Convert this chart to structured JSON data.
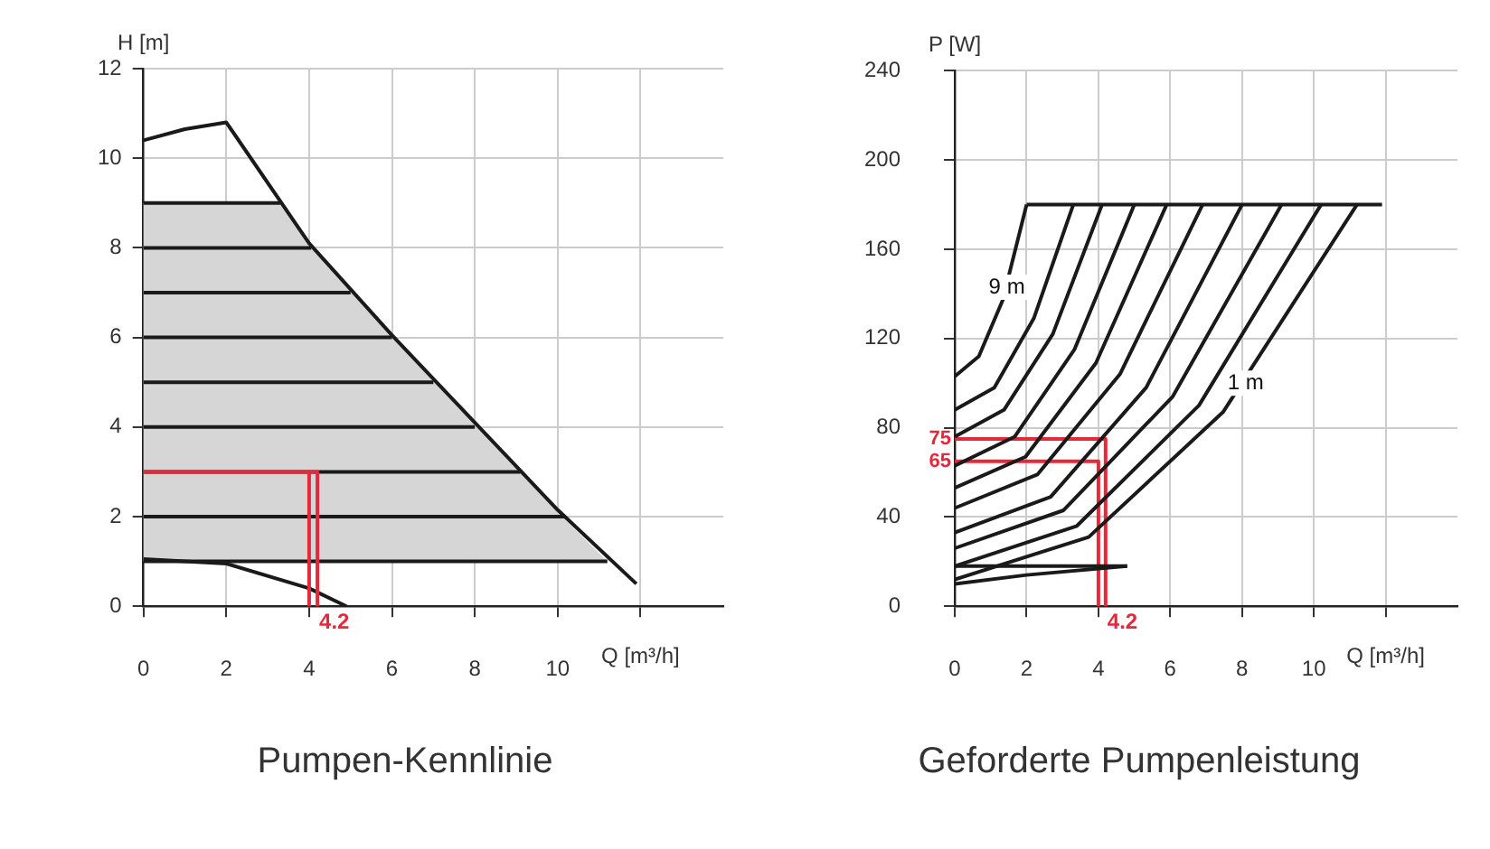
{
  "chart_data": [
    {
      "type": "line",
      "title": "Pumpen-Kennlinie",
      "xlabel": "Q [m³/h]",
      "ylabel": "H [m]",
      "xlim": [
        0,
        14
      ],
      "xticks": [
        0,
        2,
        4,
        6,
        8,
        10,
        {
          "value": 12,
          "label": null
        }
      ],
      "ylim": [
        0,
        12
      ],
      "yticks": [
        0,
        2,
        4,
        6,
        8,
        10,
        12
      ],
      "grid": true,
      "legend": false,
      "marker": "none",
      "line_style": "solid",
      "series": [
        {
          "color": "#e5283a",
          "x": [
            0,
            4.2,
            4.2
          ],
          "values": [
            3,
            3,
            0
          ]
        },
        {
          "color": "#e5283a",
          "x": [
            4,
            4
          ],
          "values": [
            3,
            0
          ]
        },
        {
          "color": "#1a1a1a",
          "x": [
            0,
            3.3
          ],
          "values": [
            9,
            9
          ]
        },
        {
          "color": "#1a1a1a",
          "x": [
            0,
            4.05
          ],
          "values": [
            8,
            8
          ]
        },
        {
          "color": "#1a1a1a",
          "x": [
            0,
            5
          ],
          "values": [
            7,
            7
          ]
        },
        {
          "color": "#1a1a1a",
          "x": [
            0,
            6
          ],
          "values": [
            6,
            6
          ]
        },
        {
          "color": "#1a1a1a",
          "x": [
            0,
            7
          ],
          "values": [
            5,
            5
          ]
        },
        {
          "color": "#1a1a1a",
          "x": [
            0,
            8
          ],
          "values": [
            4,
            4
          ]
        },
        {
          "color": "#1a1a1a",
          "x": [
            0,
            9.1
          ],
          "values": [
            3,
            3
          ]
        },
        {
          "color": "#1a1a1a",
          "x": [
            0,
            10.2
          ],
          "values": [
            2,
            2
          ]
        },
        {
          "color": "#1a1a1a",
          "x": [
            0,
            3.3,
            4,
            6,
            8,
            10,
            11.2
          ],
          "values": [
            1,
            1,
            1,
            1,
            1,
            1,
            1
          ],
          "lower": [
            1,
            1,
            1,
            1,
            1,
            1,
            1
          ],
          "upper": [
            9,
            9,
            8.1,
            6.05,
            4.1,
            2.1,
            1
          ]
        },
        {
          "color": "#1a1a1a",
          "x": [
            0,
            1,
            2,
            4,
            6,
            8,
            10,
            11.9
          ],
          "values": [
            10.4,
            10.65,
            10.8,
            8.1,
            6.05,
            4.1,
            2.15,
            0.5
          ]
        },
        {
          "color": "#1a1a1a",
          "x": [
            0,
            2,
            4,
            4.9
          ],
          "values": [
            1.05,
            0.95,
            0.4,
            0
          ]
        }
      ],
      "annotations": [
        {
          "text": "4.2",
          "x": 4.2,
          "y": 0
        }
      ]
    },
    {
      "type": "line",
      "title": "Geforderte Pumpenleistung",
      "xlabel": "Q [m³/h]",
      "ylabel": "P [W]",
      "xlim": [
        0,
        14
      ],
      "xticks": [
        0,
        2,
        4,
        6,
        8,
        10,
        {
          "value": 12,
          "label": null
        }
      ],
      "ylim": [
        0,
        240
      ],
      "yticks": [
        0,
        40,
        80,
        120,
        160,
        200,
        240
      ],
      "grid": true,
      "legend": false,
      "marker": "none",
      "line_style": "solid",
      "series": [
        {
          "color": "#1a1a1a",
          "x": [
            0,
            0.67,
            1.33,
            2
          ],
          "values": [
            103,
            112,
            137,
            180
          ]
        },
        {
          "color": "#1a1a1a",
          "x": [
            0,
            1.1,
            2.2,
            3.3
          ],
          "values": [
            88,
            98,
            129,
            180
          ]
        },
        {
          "color": "#1a1a1a",
          "x": [
            0,
            1.37,
            2.73,
            4.1
          ],
          "values": [
            76,
            88,
            122,
            180
          ]
        },
        {
          "color": "#1a1a1a",
          "x": [
            0,
            1.67,
            3.33,
            5
          ],
          "values": [
            63,
            76,
            115,
            180
          ]
        },
        {
          "color": "#1a1a1a",
          "x": [
            0,
            1.97,
            3.93,
            5.9
          ],
          "values": [
            53,
            67,
            109,
            180
          ]
        },
        {
          "color": "#1a1a1a",
          "x": [
            0,
            2.3,
            4.6,
            6.9
          ],
          "values": [
            44,
            59,
            104,
            180
          ]
        },
        {
          "color": "#1a1a1a",
          "x": [
            0,
            2.67,
            5.33,
            8
          ],
          "values": [
            33,
            49,
            98,
            180
          ]
        },
        {
          "color": "#1a1a1a",
          "x": [
            0,
            3.03,
            6.07,
            9.1
          ],
          "values": [
            26,
            43,
            94,
            180
          ]
        },
        {
          "color": "#1a1a1a",
          "x": [
            0,
            3.4,
            6.8,
            10.2
          ],
          "values": [
            18,
            36,
            90,
            180
          ]
        },
        {
          "color": "#1a1a1a",
          "x": [
            0,
            3.73,
            7.47,
            11.2
          ],
          "values": [
            12,
            31,
            87,
            180
          ]
        },
        {
          "color": "#1a1a1a",
          "x": [
            2,
            11.9
          ],
          "values": [
            180,
            180
          ]
        },
        {
          "color": "#1a1a1a",
          "x": [
            0,
            4.8
          ],
          "values": [
            18,
            18
          ]
        },
        {
          "color": "#1a1a1a",
          "x": [
            0,
            2,
            4.8
          ],
          "values": [
            10,
            14,
            18
          ]
        },
        {
          "color": "#e5283a",
          "x": [
            0,
            4.2,
            4.2
          ],
          "values": [
            75,
            75,
            0
          ]
        },
        {
          "color": "#e5283a",
          "x": [
            0,
            4,
            4
          ],
          "values": [
            65,
            65,
            0
          ]
        }
      ],
      "annotations": [
        {
          "text": "4.2",
          "x": 4.2,
          "y": 0
        },
        {
          "text": "75",
          "x": 0,
          "y": 75
        },
        {
          "text": "65",
          "x": 0,
          "y": 65
        },
        {
          "text": "9 m",
          "x": 1.45,
          "y": 143
        },
        {
          "text": "1 m",
          "x": 8.1,
          "y": 100
        }
      ]
    }
  ]
}
